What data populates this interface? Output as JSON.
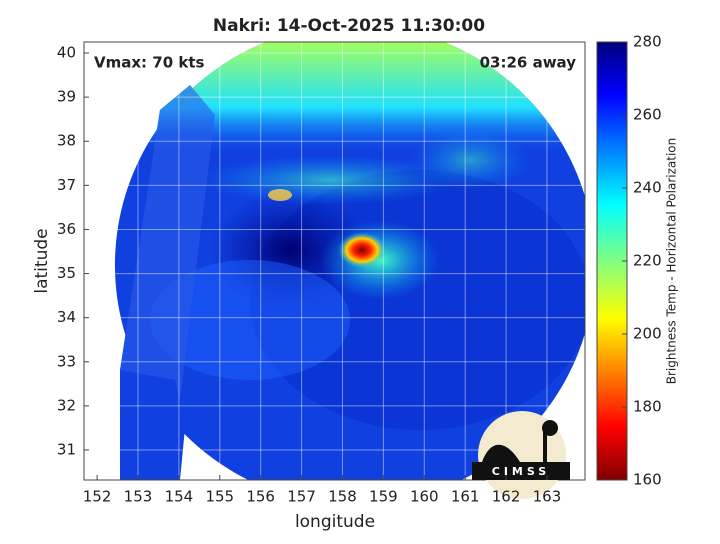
{
  "chart_data": {
    "type": "image",
    "title": "Nakri: 14-Oct-2025 11:30:00",
    "annotations": [
      "Vmax: 70 kts",
      "03:26 away"
    ],
    "xlabel": "longitude",
    "ylabel": "latitude",
    "xlim": [
      151.68,
      163.93
    ],
    "ylim": [
      30.32,
      40.25
    ],
    "xticks": [
      152,
      153,
      154,
      155,
      156,
      157,
      158,
      159,
      160,
      161,
      162,
      163
    ],
    "yticks": [
      31,
      32,
      33,
      34,
      35,
      36,
      37,
      38,
      39,
      40
    ],
    "grid": true,
    "colorbar": {
      "label": "Brightness Temp - Horizontal Polarization",
      "lim": [
        160,
        280
      ],
      "ticks": [
        160,
        180,
        200,
        220,
        240,
        260,
        280
      ]
    },
    "logo": "CIMSS"
  }
}
